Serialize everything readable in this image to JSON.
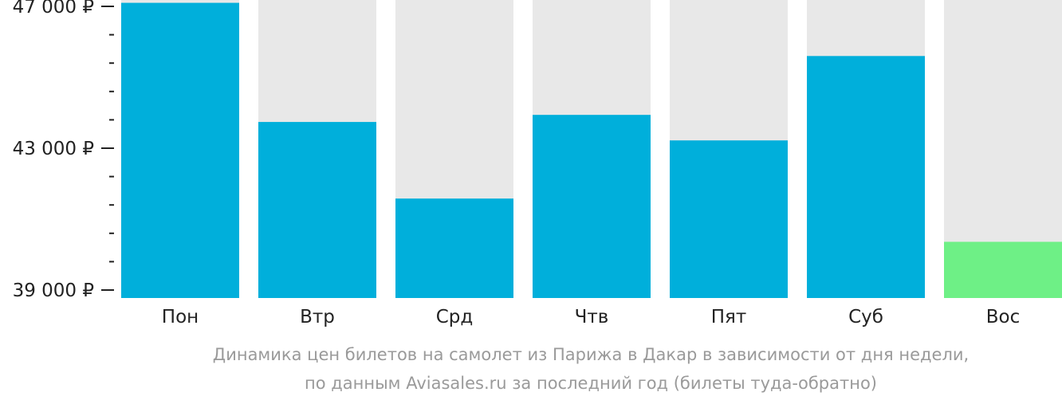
{
  "chart_data": {
    "type": "bar",
    "categories": [
      "Пон",
      "Втр",
      "Срд",
      "Чтв",
      "Пят",
      "Суб",
      "Вос"
    ],
    "values": [
      47100,
      43740,
      41580,
      43940,
      43220,
      45600,
      40360
    ],
    "highlight_index": 6,
    "ylim": [
      39000,
      47000
    ],
    "yticks": [
      {
        "value": 47000,
        "label": "47 000 ₽"
      },
      {
        "value": 43000,
        "label": "43 000 ₽"
      },
      {
        "value": 39000,
        "label": "39 000 ₽"
      }
    ],
    "minor_tick_step": 800,
    "colors": {
      "bar": "#00afdb",
      "bar_highlight": "#6ef086",
      "bar_background": "#e8e8e8",
      "axis": "#222222",
      "caption": "#9a9a9a"
    },
    "caption_lines": [
      "Динамика цен билетов на самолет из Парижа в Дакар в зависимости от дня недели,",
      "по данным Aviasales.ru за последний год (билеты туда-обратно)"
    ]
  }
}
